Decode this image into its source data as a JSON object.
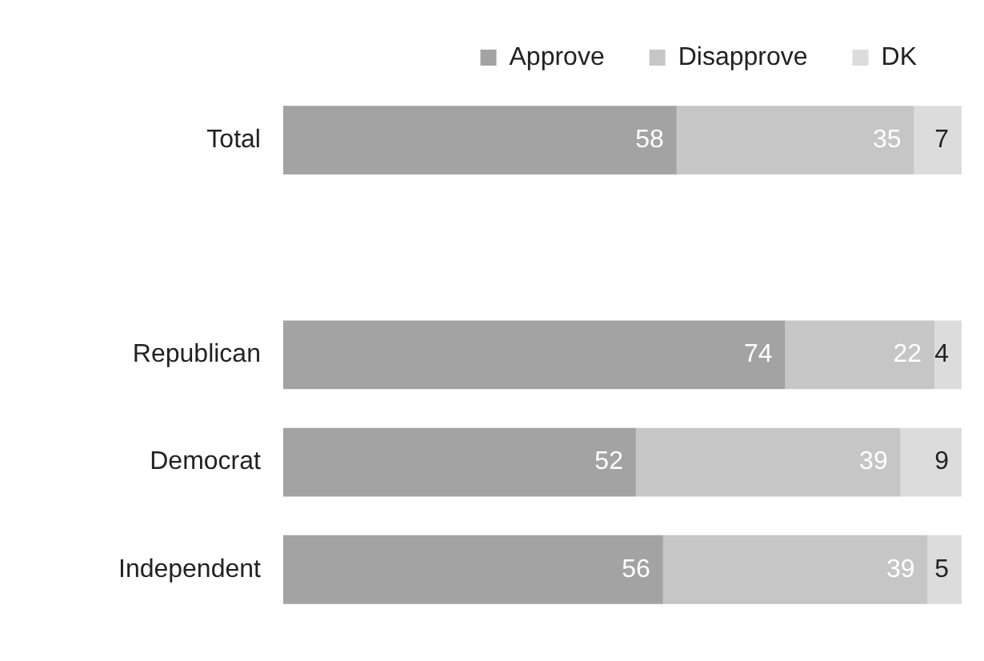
{
  "chart_data": {
    "type": "bar",
    "orientation": "horizontal",
    "stacked": true,
    "categories": [
      "Total",
      null,
      "Republican",
      "Democrat",
      "Independent"
    ],
    "series": [
      {
        "name": "Approve",
        "color": "#a3a3a3",
        "values": [
          58,
          null,
          74,
          52,
          56
        ]
      },
      {
        "name": "Disapprove",
        "color": "#c6c6c6",
        "values": [
          35,
          null,
          22,
          39,
          39
        ]
      },
      {
        "name": "DK",
        "color": "#dcdcdc",
        "values": [
          7,
          null,
          4,
          9,
          5
        ]
      }
    ],
    "xlim": [
      0,
      100
    ],
    "tick_labels": "y",
    "legend": "top",
    "data_labels": true
  }
}
